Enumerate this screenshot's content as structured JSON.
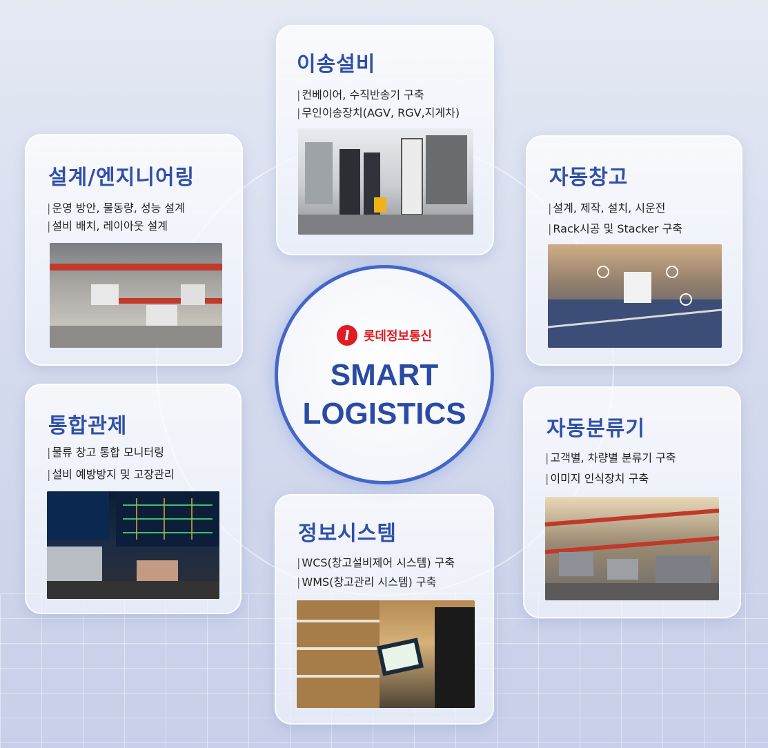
{
  "center": {
    "brand_logo_letter": "l",
    "brand_name": "롯데정보통신",
    "title_line1": "SMART",
    "title_line2": "LOGISTICS"
  },
  "cards": {
    "transport": {
      "title": "이송설비",
      "lines": [
        "컨베이어, 수직반송기 구축",
        "무인이송장치(AGV, RGV,지게차)"
      ]
    },
    "design": {
      "title": "설계/엔지니어링",
      "lines": [
        "운영 방안, 물동량, 성능 설계",
        "설비 배치, 레이아웃 설계"
      ]
    },
    "asrs": {
      "title": "자동창고",
      "lines": [
        "설계, 제작, 설치, 시운전",
        "Rack시공 및 Stacker 구축"
      ]
    },
    "control": {
      "title": "통합관제",
      "lines": [
        "물류 창고 통합 모니터링",
        "설비 예방방지 및 고장관리"
      ]
    },
    "sorter": {
      "title": "자동분류기",
      "lines": [
        "고객별, 차량별 분류기 구축",
        "이미지 인식장치 구축"
      ]
    },
    "info": {
      "title": "정보시스템",
      "lines": [
        "WCS(창고설비제어 시스템) 구축",
        "WMS(창고관리 시스템) 구축"
      ]
    }
  }
}
